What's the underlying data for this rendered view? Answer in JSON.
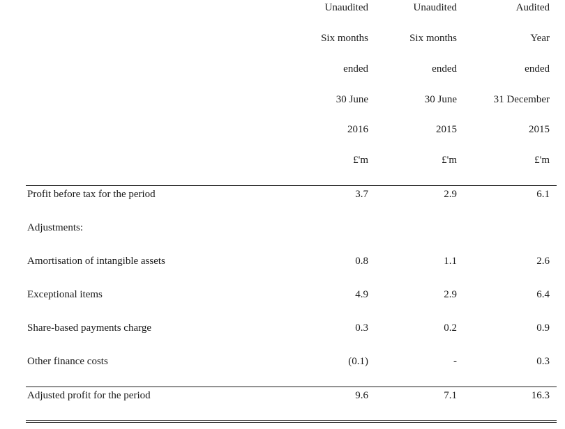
{
  "header": {
    "col1": [
      "Unaudited",
      "Six months",
      "ended",
      "30 June",
      "2016",
      "£'m"
    ],
    "col2": [
      "Unaudited",
      "Six months",
      "ended",
      "30 June",
      "2015",
      "£'m"
    ],
    "col3": [
      "Audited",
      "Year",
      "ended",
      "31 December",
      "2015",
      "£'m"
    ]
  },
  "rows": [
    {
      "label": "Profit before tax for the period",
      "v1": "3.7",
      "v2": "2.9",
      "v3": "6.1"
    },
    {
      "label": "Adjustments:",
      "v1": "",
      "v2": "",
      "v3": ""
    },
    {
      "label": "Amortisation of intangible assets",
      "v1": "0.8",
      "v2": "1.1",
      "v3": "2.6"
    },
    {
      "label": "Exceptional items",
      "v1": "4.9",
      "v2": "2.9",
      "v3": "6.4"
    },
    {
      "label": "Share-based payments charge",
      "v1": "0.3",
      "v2": "0.2",
      "v3": "0.9"
    },
    {
      "label": "Other finance costs",
      "v1": "(0.1)",
      "v2": "-",
      "v3": "0.3"
    },
    {
      "label": "Adjusted profit for the period",
      "v1": "9.6",
      "v2": "7.1",
      "v3": "16.3"
    }
  ]
}
